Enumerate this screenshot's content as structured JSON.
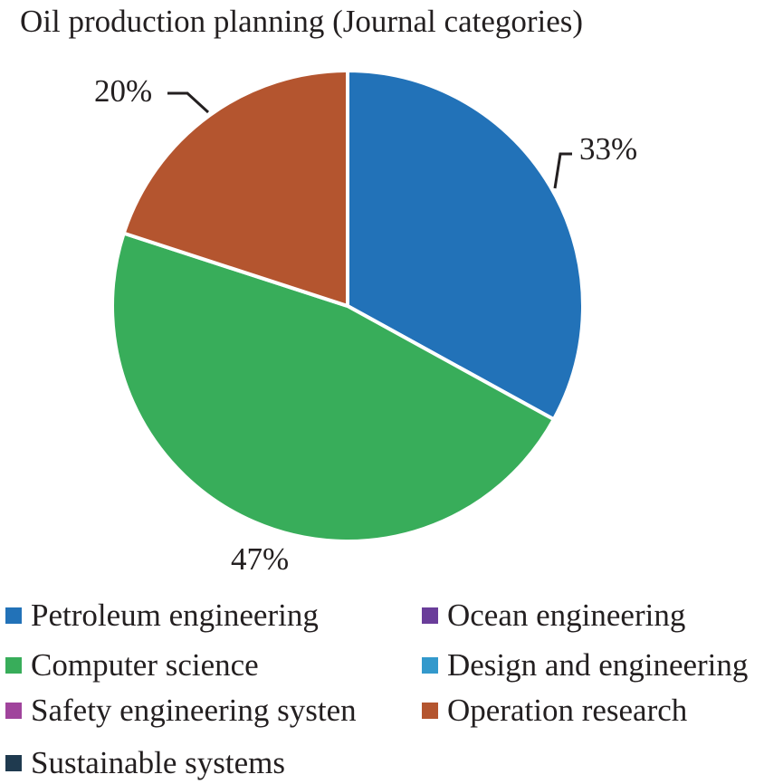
{
  "chart_data": {
    "type": "pie",
    "title": "Oil production planning (Journal categories)",
    "categories": [
      "Petroleum engineering",
      "Computer science",
      "Operation research"
    ],
    "values": [
      33,
      47,
      20
    ],
    "data_labels": [
      "33%",
      "47%",
      "20%"
    ],
    "colors": [
      "#2272b8",
      "#38ad5a",
      "#b4552f"
    ],
    "legend": [
      {
        "label": "Petroleum engineering",
        "color": "#2272b8"
      },
      {
        "label": "Ocean engineering",
        "color": "#6a3d9a"
      },
      {
        "label": "Computer science",
        "color": "#38ad5a"
      },
      {
        "label": "Design and engineering",
        "color": "#3399cc"
      },
      {
        "label": "Safety engineering systen",
        "color": "#a0449c"
      },
      {
        "label": "Operation research",
        "color": "#b4552f"
      },
      {
        "label": "Sustainable systems",
        "color": "#1f3a4f"
      }
    ],
    "legend_position": "bottom"
  }
}
